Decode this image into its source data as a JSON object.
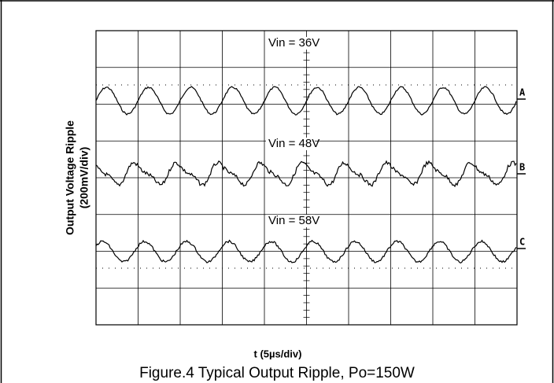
{
  "figure": {
    "traces": [
      {
        "label": "Vin = 36V",
        "channel": "A"
      },
      {
        "label": "Vin = 48V",
        "channel": "B"
      },
      {
        "label": "Vin = 58V",
        "channel": "C"
      }
    ],
    "y_label_line1": "Output Voltage Ripple",
    "y_label_line2": "(200mV/div)",
    "x_label": "t (5µs/div)",
    "caption": "Figure.4 Typical Output Ripple, Po=150W"
  }
}
